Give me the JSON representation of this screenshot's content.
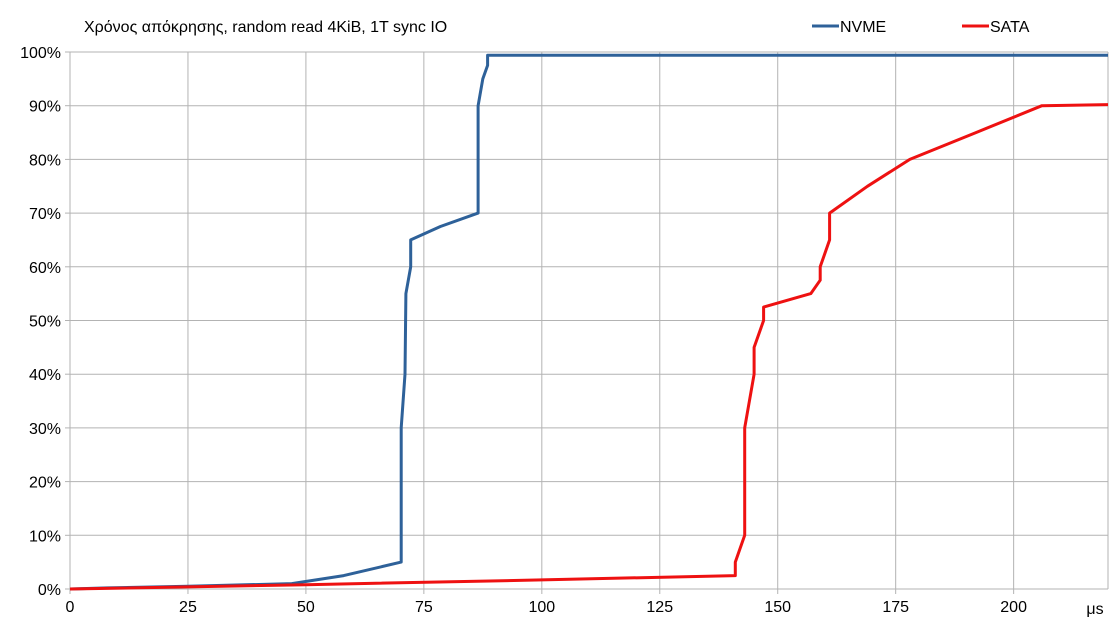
{
  "chart_data": {
    "type": "line",
    "title": "Χρόνος απόκρησης, random read 4KiB, 1T sync IO",
    "xlabel": "μs",
    "ylabel": "",
    "xlim": [
      0,
      220
    ],
    "ylim": [
      0,
      100
    ],
    "x_ticks": [
      0,
      25,
      50,
      75,
      100,
      125,
      150,
      175,
      200
    ],
    "y_ticks": [
      0,
      10,
      20,
      30,
      40,
      50,
      60,
      70,
      80,
      90,
      100
    ],
    "y_tick_suffix": "%",
    "grid": true,
    "legend_position": "top-right",
    "series": [
      {
        "name": "NVME",
        "color": "#2e6199",
        "points": [
          [
            0,
            0
          ],
          [
            8,
            0.2
          ],
          [
            25,
            0.5
          ],
          [
            47,
            1
          ],
          [
            58,
            2.5
          ],
          [
            70.2,
            5
          ],
          [
            70.2,
            30
          ],
          [
            71,
            40
          ],
          [
            71.2,
            55
          ],
          [
            72.2,
            60
          ],
          [
            72.2,
            65
          ],
          [
            78.5,
            67.5
          ],
          [
            86.5,
            70
          ],
          [
            86.5,
            90
          ],
          [
            87.5,
            95
          ],
          [
            88.5,
            97.5
          ],
          [
            88.5,
            99.4
          ],
          [
            220,
            99.4
          ]
        ]
      },
      {
        "name": "SATA",
        "color": "#ee1111",
        "points": [
          [
            0,
            0
          ],
          [
            50,
            0.8
          ],
          [
            100,
            1.7
          ],
          [
            141,
            2.5
          ],
          [
            141,
            5
          ],
          [
            143,
            10
          ],
          [
            143,
            30
          ],
          [
            145,
            40
          ],
          [
            145,
            45
          ],
          [
            147,
            50
          ],
          [
            147,
            52.5
          ],
          [
            157,
            55
          ],
          [
            159,
            57.5
          ],
          [
            159,
            60
          ],
          [
            161,
            65
          ],
          [
            161,
            70
          ],
          [
            169,
            75
          ],
          [
            178,
            80
          ],
          [
            192,
            85
          ],
          [
            206,
            90
          ],
          [
            220,
            90.2
          ]
        ]
      }
    ]
  }
}
